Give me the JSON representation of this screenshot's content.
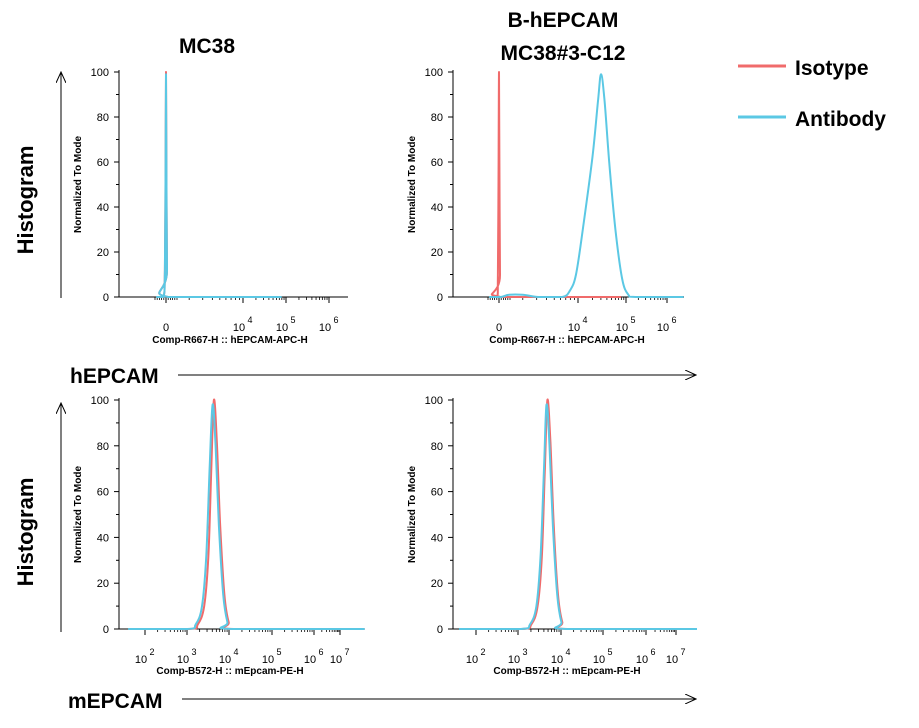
{
  "column_titles": {
    "left": "MC38",
    "right_line1": "B-hEPCAM",
    "right_line2": "MC38#3-C12"
  },
  "row_labels": {
    "top": "Histogram",
    "bottom": "Histogram"
  },
  "row_axis_labels": {
    "top": "hEPCAM",
    "bottom": "mEPCAM"
  },
  "legend": [
    {
      "label": "Isotype",
      "color": "#f06b6b"
    },
    {
      "label": "Antibody",
      "color": "#5bc8e4"
    }
  ],
  "colors": {
    "isotype": "#f06b6b",
    "antibody": "#5bc8e4",
    "axis": "#000000"
  },
  "chart_data": [
    {
      "id": "top-left",
      "type": "line",
      "title": "MC38",
      "xlabel": "Comp-R667-H :: hEPCAM-APC-H",
      "ylabel": "Normalized To Mode",
      "x_scale": "biexponential",
      "y_range": [
        0,
        100
      ],
      "y_ticks": [
        "0",
        "20",
        "40",
        "60",
        "80",
        "100"
      ],
      "x_ticks": [
        {
          "base": "0",
          "exp": ""
        },
        {
          "base": "10",
          "exp": "4"
        },
        {
          "base": "10",
          "exp": "5"
        },
        {
          "base": "10",
          "exp": "6"
        }
      ],
      "series": [
        {
          "name": "Isotype",
          "color": "#f06b6b",
          "points": [
            [
              -0.45,
              0
            ],
            [
              -0.12,
              0
            ],
            [
              -0.05,
              12
            ],
            [
              -0.02,
              60
            ],
            [
              0,
              100
            ],
            [
              0.02,
              62
            ],
            [
              0.05,
              12
            ],
            [
              0.1,
              0
            ],
            [
              4.9,
              0
            ]
          ]
        },
        {
          "name": "Antibody",
          "color": "#5bc8e4",
          "points": [
            [
              -0.45,
              0
            ],
            [
              -0.12,
              0
            ],
            [
              -0.05,
              12
            ],
            [
              -0.02,
              60
            ],
            [
              0,
              99
            ],
            [
              0.02,
              62
            ],
            [
              0.05,
              12
            ],
            [
              0.1,
              0
            ],
            [
              4.9,
              0
            ]
          ]
        }
      ]
    },
    {
      "id": "top-right",
      "type": "line",
      "title": "B-hEPCAM MC38#3-C12",
      "xlabel": "Comp-R667-H :: hEPCAM-APC-H",
      "ylabel": "Normalized To Mode",
      "x_scale": "biexponential",
      "y_range": [
        0,
        100
      ],
      "y_ticks": [
        "0",
        "20",
        "40",
        "60",
        "80",
        "100"
      ],
      "x_ticks": [
        {
          "base": "0",
          "exp": ""
        },
        {
          "base": "10",
          "exp": "4"
        },
        {
          "base": "10",
          "exp": "5"
        },
        {
          "base": "10",
          "exp": "6"
        }
      ],
      "series": [
        {
          "name": "Isotype",
          "color": "#f06b6b",
          "points": [
            [
              -0.45,
              0
            ],
            [
              -0.1,
              0
            ],
            [
              -0.05,
              10
            ],
            [
              -0.02,
              60
            ],
            [
              0,
              100
            ],
            [
              0.02,
              60
            ],
            [
              0.05,
              10
            ],
            [
              0.1,
              0
            ],
            [
              4.9,
              0
            ]
          ]
        },
        {
          "name": "Antibody",
          "color": "#5bc8e4",
          "points": [
            [
              -0.45,
              0
            ],
            [
              0.1,
              0
            ],
            [
              0.5,
              1
            ],
            [
              1.2,
              1
            ],
            [
              2,
              0
            ],
            [
              3.2,
              0
            ],
            [
              3.6,
              3
            ],
            [
              3.9,
              10
            ],
            [
              4.1,
              30
            ],
            [
              4.3,
              62
            ],
            [
              4.42,
              88
            ],
            [
              4.48,
              99
            ],
            [
              4.55,
              88
            ],
            [
              4.65,
              60
            ],
            [
              4.78,
              30
            ],
            [
              4.92,
              8
            ],
            [
              5.05,
              1
            ],
            [
              5.2,
              0
            ],
            [
              6.2,
              0
            ]
          ]
        }
      ]
    },
    {
      "id": "bottom-left",
      "type": "line",
      "title": "",
      "xlabel": "Comp-B572-H :: mEpcam-PE-H",
      "ylabel": "Normalized To Mode",
      "x_scale": "log",
      "y_range": [
        0,
        100
      ],
      "y_ticks": [
        "0",
        "20",
        "40",
        "60",
        "80",
        "100"
      ],
      "x_ticks": [
        {
          "base": "10",
          "exp": "2"
        },
        {
          "base": "10",
          "exp": "3"
        },
        {
          "base": "10",
          "exp": "4"
        },
        {
          "base": "10",
          "exp": "5"
        },
        {
          "base": "10",
          "exp": "6"
        },
        {
          "base": "10",
          "exp": "7"
        }
      ],
      "series": [
        {
          "name": "Isotype",
          "color": "#f06b6b",
          "points": [
            [
              1.6,
              0
            ],
            [
              3.05,
              0
            ],
            [
              3.25,
              2
            ],
            [
              3.4,
              10
            ],
            [
              3.5,
              32
            ],
            [
              3.57,
              70
            ],
            [
              3.63,
              100
            ],
            [
              3.7,
              82
            ],
            [
              3.78,
              45
            ],
            [
              3.88,
              15
            ],
            [
              3.98,
              3
            ],
            [
              4.1,
              0
            ],
            [
              7.2,
              0
            ]
          ]
        },
        {
          "name": "Antibody",
          "color": "#5bc8e4",
          "points": [
            [
              1.6,
              0
            ],
            [
              3.0,
              0
            ],
            [
              3.2,
              2
            ],
            [
              3.35,
              10
            ],
            [
              3.45,
              32
            ],
            [
              3.53,
              70
            ],
            [
              3.6,
              98
            ],
            [
              3.67,
              80
            ],
            [
              3.75,
              45
            ],
            [
              3.85,
              15
            ],
            [
              3.95,
              3
            ],
            [
              4.05,
              0
            ],
            [
              7.2,
              0
            ]
          ]
        }
      ]
    },
    {
      "id": "bottom-right",
      "type": "line",
      "title": "",
      "xlabel": "Comp-B572-H :: mEpcam-PE-H",
      "ylabel": "Normalized To Mode",
      "x_scale": "log",
      "y_range": [
        0,
        100
      ],
      "y_ticks": [
        "0",
        "20",
        "40",
        "60",
        "80",
        "100"
      ],
      "x_ticks": [
        {
          "base": "10",
          "exp": "2"
        },
        {
          "base": "10",
          "exp": "3"
        },
        {
          "base": "10",
          "exp": "4"
        },
        {
          "base": "10",
          "exp": "5"
        },
        {
          "base": "10",
          "exp": "6"
        },
        {
          "base": "10",
          "exp": "7"
        }
      ],
      "series": [
        {
          "name": "Isotype",
          "color": "#f06b6b",
          "points": [
            [
              1.6,
              0
            ],
            [
              3.08,
              0
            ],
            [
              3.3,
              2
            ],
            [
              3.45,
              10
            ],
            [
              3.55,
              32
            ],
            [
              3.62,
              70
            ],
            [
              3.68,
              100
            ],
            [
              3.75,
              82
            ],
            [
              3.83,
              45
            ],
            [
              3.93,
              15
            ],
            [
              4.03,
              3
            ],
            [
              4.15,
              0
            ],
            [
              7.2,
              0
            ]
          ]
        },
        {
          "name": "Antibody",
          "color": "#5bc8e4",
          "points": [
            [
              1.6,
              0
            ],
            [
              3.05,
              0
            ],
            [
              3.27,
              2
            ],
            [
              3.42,
              10
            ],
            [
              3.52,
              32
            ],
            [
              3.6,
              70
            ],
            [
              3.66,
              98
            ],
            [
              3.73,
              80
            ],
            [
              3.81,
              45
            ],
            [
              3.91,
              15
            ],
            [
              4.01,
              3
            ],
            [
              4.12,
              0
            ],
            [
              7.2,
              0
            ]
          ]
        }
      ]
    }
  ]
}
